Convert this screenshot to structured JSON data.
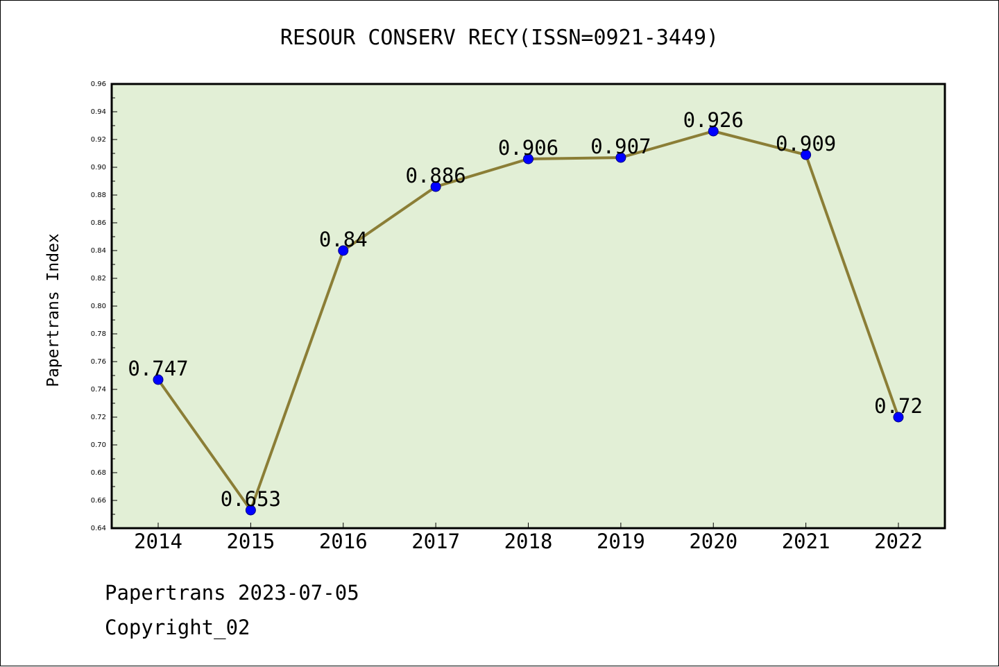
{
  "title": "RESOUR CONSERV RECY(ISSN=0921-3449)",
  "footer": {
    "line1": "Papertrans 2023-07-05",
    "line2": "Copyright_02"
  },
  "colors": {
    "plot_background": "#e2efd6",
    "line": "#8b7e36",
    "marker": "#0000ff",
    "axis": "#000000"
  },
  "chart_data": {
    "type": "line",
    "title": "RESOUR CONSERV RECY(ISSN=0921-3449)",
    "xlabel": "",
    "ylabel": "Papertrans Index",
    "categories": [
      "2014",
      "2015",
      "2016",
      "2017",
      "2018",
      "2019",
      "2020",
      "2021",
      "2022"
    ],
    "series": [
      {
        "values": [
          0.747,
          0.653,
          0.84,
          0.886,
          0.906,
          0.907,
          0.926,
          0.909,
          0.72
        ],
        "labels": [
          "0.747",
          "0.653",
          "0.84",
          "0.886",
          "0.906",
          "0.907",
          "0.926",
          "0.909",
          "0.72"
        ]
      }
    ],
    "ylim": [
      0.64,
      0.96
    ],
    "yticks": [
      "0.64",
      "0.66",
      "0.68",
      "0.70",
      "0.72",
      "0.74",
      "0.76",
      "0.78",
      "0.80",
      "0.82",
      "0.84",
      "0.86",
      "0.88",
      "0.90",
      "0.92",
      "0.94",
      "0.96"
    ],
    "grid": false,
    "legend": "none"
  }
}
